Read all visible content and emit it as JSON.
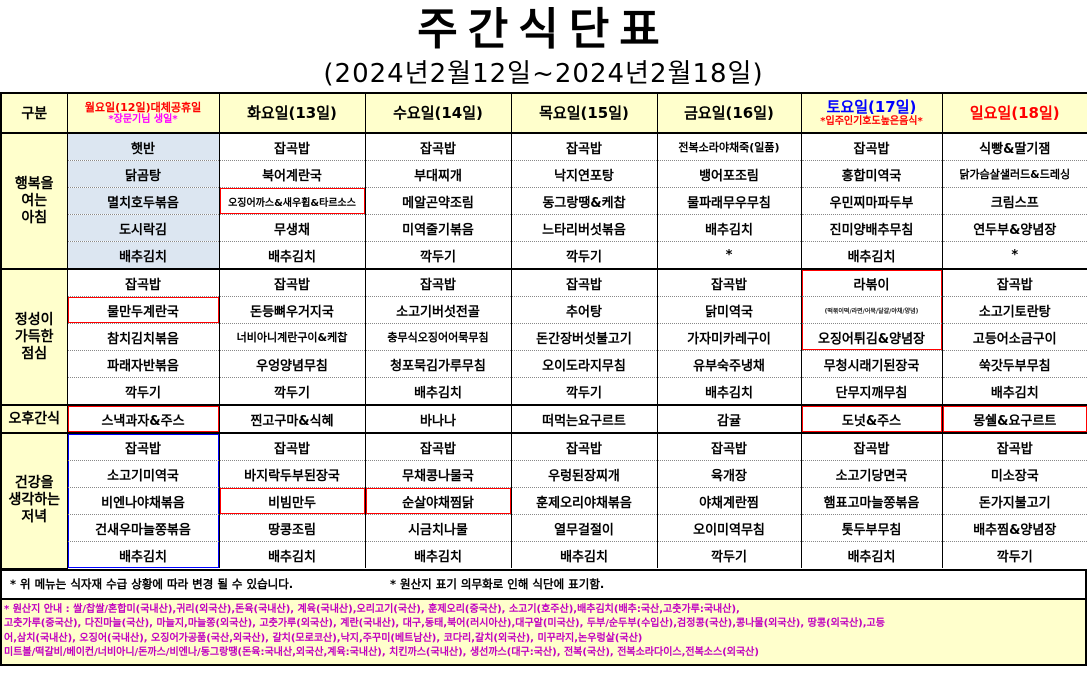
{
  "title": "주간식단표",
  "subtitle": "(2024년2월12일~2024년2월18일)",
  "corner_label": "구분",
  "colors": {
    "pale_yellow": "#FFFFCC",
    "light_blue": "#DCE6F1",
    "header_red": "#FF0000",
    "header_magenta": "#FF00FF",
    "header_blue": "#0000FF",
    "box_red": "#FF0000",
    "box_blue": "#0000FF",
    "origin_text": "#C000C0"
  },
  "sections": [
    {
      "key": "breakfast",
      "label": "행복을\n여는\n아침",
      "rows": 5
    },
    {
      "key": "lunch",
      "label": "정성이\n가득한\n점심",
      "rows": 5
    },
    {
      "key": "snack",
      "label": "오후간식",
      "rows": 1
    },
    {
      "key": "dinner",
      "label": "건강을\n생각하는\n저녁",
      "rows": 5
    }
  ],
  "days": [
    {
      "id": "mon",
      "header": {
        "line1": "월요일(12일)대체공휴일",
        "c1": "#FF0000",
        "small": true,
        "line2": "*장문기님 생일*",
        "c2": "#FF00FF"
      },
      "breakfast": [
        "햇반",
        "닭곰탕",
        "멸치호두볶음",
        "도시락김",
        "배추김치"
      ],
      "lunch": [
        "잡곡밥",
        "물만두계란국",
        "참치김치볶음",
        "파래자반볶음",
        "깍두기"
      ],
      "snack": "스낵과자&주스",
      "dinner": [
        "잡곡밥",
        "소고기미역국",
        "비엔나야채볶음",
        "건새우마늘쫑볶음",
        "배추김치"
      ]
    },
    {
      "id": "tue",
      "header": {
        "line1": "화요일(13일)",
        "c1": "#000000"
      },
      "breakfast": [
        "잡곡밥",
        "북어계란국",
        "오징어까스&새우휩&타르소스",
        "무생채",
        "배추김치"
      ],
      "lunch": [
        "잡곡밥",
        "돈등뼈우거지국",
        "너비아니계란구이&케찹",
        "우엉양념무침",
        "깍두기"
      ],
      "snack": "찐고구마&식혜",
      "dinner": [
        "잡곡밥",
        "바지락두부된장국",
        "비빔만두",
        "땅콩조림",
        "배추김치"
      ]
    },
    {
      "id": "wed",
      "header": {
        "line1": "수요일(14일)",
        "c1": "#000000"
      },
      "breakfast": [
        "잡곡밥",
        "부대찌개",
        "메알곤약조림",
        "미역줄기볶음",
        "깍두기"
      ],
      "lunch": [
        "잡곡밥",
        "소고기버섯전골",
        "충무식오징어어묵무침",
        "청포묵김가루무침",
        "배추김치"
      ],
      "snack": "바나나",
      "dinner": [
        "잡곡밥",
        "무채콩나물국",
        "순살야채찜닭",
        "시금치나물",
        "배추김치"
      ]
    },
    {
      "id": "thu",
      "header": {
        "line1": "목요일(15일)",
        "c1": "#000000"
      },
      "breakfast": [
        "잡곡밥",
        "낙지연포탕",
        "동그랑땡&케찹",
        "느타리버섯볶음",
        "깍두기"
      ],
      "lunch": [
        "잡곡밥",
        "추어탕",
        "돈간장버섯불고기",
        "오이도라지무침",
        "깍두기"
      ],
      "snack": "떠먹는요구르트",
      "dinner": [
        "잡곡밥",
        "우렁된장찌개",
        "훈제오리야채볶음",
        "열무걸절이",
        "배추김치"
      ]
    },
    {
      "id": "fri",
      "header": {
        "line1": "금요일(16일)",
        "c1": "#000000"
      },
      "breakfast": [
        "전복소라야채죽(일품)",
        "뱅어포조림",
        "물파래무우무침",
        "배추김치",
        "*"
      ],
      "lunch": [
        "잡곡밥",
        "닭미역국",
        "가자미카레구이",
        "유부숙주냉채",
        "배추김치"
      ],
      "snack": "감귤",
      "dinner": [
        "잡곡밥",
        "육개장",
        "야채계란찜",
        "오이미역무침",
        "깍두기"
      ]
    },
    {
      "id": "sat",
      "header": {
        "line1": "토요일(17일)",
        "c1": "#0000FF",
        "line2": "*입주인기호도높은음식*",
        "c2": "#FF0000"
      },
      "breakfast": [
        "잡곡밥",
        "홍합미역국",
        "우민찌마파두부",
        "진미양배추무침",
        "배추김치"
      ],
      "lunch": [
        "라볶이",
        "(떡볶이떡/라면/어묵/달걀/야채/양념)",
        "오징어튀김&양념장",
        "무청시래기된장국",
        "단무지깨무침"
      ],
      "snack": "도넛&주스",
      "dinner": [
        "잡곡밥",
        "소고기당면국",
        "햄표고마늘쫑볶음",
        "톳두부무침",
        "배추김치"
      ]
    },
    {
      "id": "sun",
      "header": {
        "line1": "일요일(18일)",
        "c1": "#FF0000"
      },
      "breakfast": [
        "식빵&딸기잼",
        "닭가슴살샐러드&드레싱",
        "크림스프",
        "연두부&양념장",
        "*"
      ],
      "lunch": [
        "잡곡밥",
        "소고기토란탕",
        "고등어소금구이",
        "쑥갓두부무침",
        "배추김치"
      ],
      "snack": "몽쉘&요구르트",
      "dinner": [
        "잡곡밥",
        "미소장국",
        "돈가지불고기",
        "배추찜&양념장",
        "깍두기"
      ]
    }
  ],
  "small_text_cells": [
    [
      "sat",
      "lunch",
      1
    ]
  ],
  "highlights": [
    {
      "day": "mon",
      "section": "lunch",
      "from": 1,
      "to": 1,
      "color": "#FF0000"
    },
    {
      "day": "mon",
      "section": "snack",
      "from": 0,
      "to": 0,
      "color": "#FF0000"
    },
    {
      "day": "mon",
      "section": "dinner",
      "from": 0,
      "to": 4,
      "color": "#0000FF"
    },
    {
      "day": "tue",
      "section": "breakfast",
      "from": 2,
      "to": 2,
      "color": "#FF0000"
    },
    {
      "day": "tue",
      "section": "dinner",
      "from": 2,
      "to": 2,
      "color": "#FF0000"
    },
    {
      "day": "wed",
      "section": "dinner",
      "from": 2,
      "to": 2,
      "color": "#FF0000"
    },
    {
      "day": "sat",
      "section": "lunch",
      "from": 0,
      "to": 2,
      "color": "#FF0000"
    },
    {
      "day": "sat",
      "section": "snack",
      "from": 0,
      "to": 0,
      "color": "#FF0000"
    },
    {
      "day": "sun",
      "section": "snack",
      "from": 0,
      "to": 0,
      "color": "#FF0000"
    }
  ],
  "footnotes": {
    "left": "* 위 메뉴는 식자재 수급 상황에 따라 변경 될 수 있습니다.",
    "right": "* 원산지 표기 의무화로 인해 식단에 표기함."
  },
  "origin_lines": [
    "* 원산지 안내  : 쌀/찹쌀/혼합미(국내산),귀리(외국산),돈육(국내산), 계육(국내산),오리고기(국산), 훈제오리(중국산), 소고기(호주산),배추김치(배추:국산,고춧가루:국내산),",
    "고춧가루(중국산), 다진마늘(국산), 마늘지,마늘쫑(외국산), 고춧가루(외국산), 계란(국내산), 대구,동태,북어(러시아산),대구알(미국산), 두부/순두부(수입산),검정콩(국산),콩나물(외국산), 땅콩(외국산),고등",
    "어,삼치(국내산), 오징어(국내산), 오징어가공품(국산,외국산), 갈치(모로코산),낙지,주꾸미(베트남산), 코다리,갈치(외국산), 미꾸라지,논우렁살(국산)",
    "미트볼/떡갈비/베이컨/너비아니/돈까스/비엔나/동그랑땡(돈육:국내산,외국산,계육:국내산), 치킨까스(국내산), 생선까스(대구:국산), 전복(국산), 전복소라다이스,전복소스(외국산)"
  ]
}
